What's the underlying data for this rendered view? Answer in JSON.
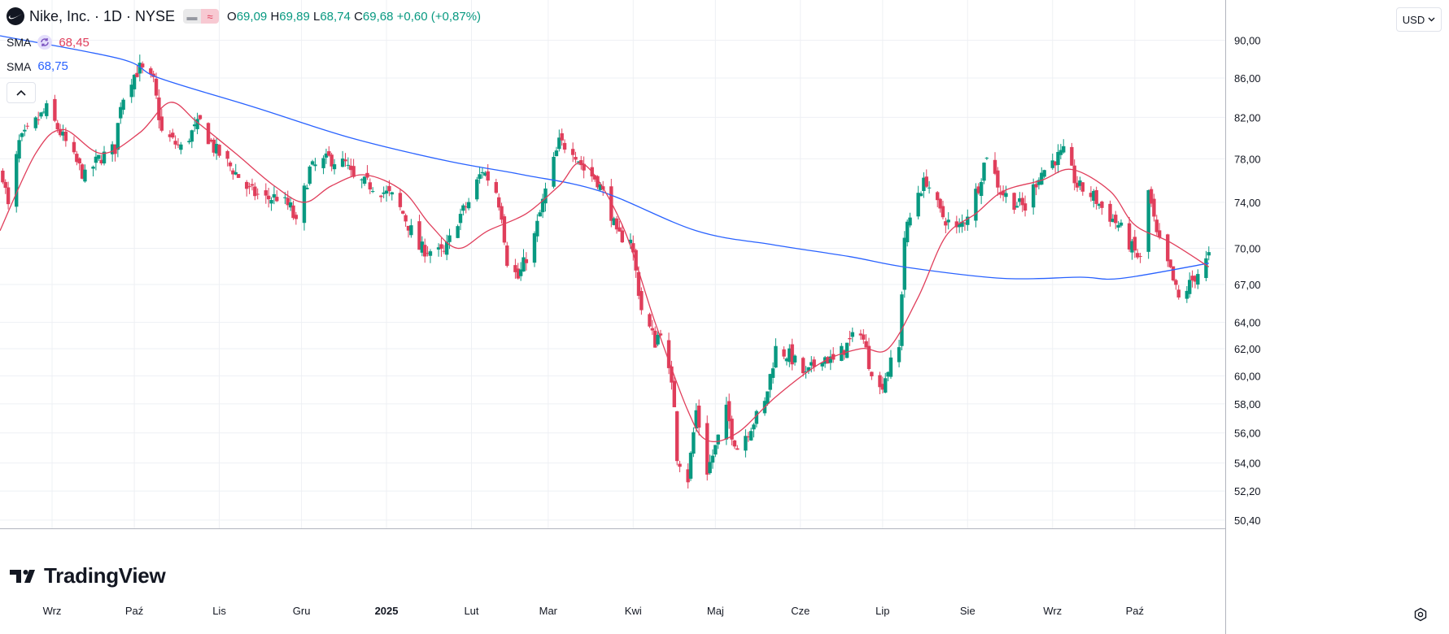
{
  "header": {
    "symbol_title": "Nike, Inc. · 1D · NYSE",
    "ohlc": {
      "o_label": "O",
      "o": "69,09",
      "h_label": "H",
      "h": "69,89",
      "l_label": "L",
      "l": "68,74",
      "c_label": "C",
      "c": "69,68",
      "change": "+0,60 (+0,87%)"
    }
  },
  "indicators": [
    {
      "name": "SMA",
      "value": "68,45",
      "color": "#e03e5b"
    },
    {
      "name": "SMA",
      "value": "68,75",
      "color": "#2962ff"
    }
  ],
  "currency": "USD",
  "brand": "TradingView",
  "icons": [
    "nike-swoosh-icon",
    "sync-icon",
    "chevron-up-icon",
    "chevron-down-icon",
    "settings-icon",
    "tradingview-logo-icon"
  ],
  "colors": {
    "up": "#089981",
    "down": "#e03e5b",
    "sma_short": "#e03e5b",
    "sma_long": "#2962ff",
    "grid": "#eef0f4"
  },
  "chart_data": {
    "type": "candlestick",
    "title": "Nike, Inc. · 1D · NYSE",
    "x_ticks": [
      {
        "label": "Wrz",
        "date": "2024-09-01"
      },
      {
        "label": "Paź",
        "date": "2024-10-01"
      },
      {
        "label": "Lis",
        "date": "2024-11-01"
      },
      {
        "label": "Gru",
        "date": "2024-12-01"
      },
      {
        "label": "2025",
        "date": "2025-01-01"
      },
      {
        "label": "Lut",
        "date": "2025-02-01"
      },
      {
        "label": "Mar",
        "date": "2025-03-01"
      },
      {
        "label": "Kwi",
        "date": "2025-04-01"
      },
      {
        "label": "Maj",
        "date": "2025-05-01"
      },
      {
        "label": "Cze",
        "date": "2025-06-01"
      },
      {
        "label": "Lip",
        "date": "2025-07-01"
      },
      {
        "label": "Sie",
        "date": "2025-08-01"
      },
      {
        "label": "Wrz",
        "date": "2025-09-01"
      },
      {
        "label": "Paź",
        "date": "2025-10-01"
      }
    ],
    "y_ticks": [
      "90,00",
      "86,00",
      "82,00",
      "78,00",
      "74,00",
      "70,00",
      "67,00",
      "64,00",
      "62,00",
      "60,00",
      "58,00",
      "56,00",
      "54,00",
      "52,20",
      "50,40"
    ],
    "y_scale": "log",
    "ylim": [
      49.9,
      94.5
    ],
    "xlim": [
      "2024-08-13",
      "2025-11-03"
    ],
    "grid": true,
    "last_close": 69.68,
    "price_path": [
      {
        "date": "2024-08-14",
        "close": 76.5
      },
      {
        "date": "2024-08-16",
        "close": 73.5
      },
      {
        "date": "2024-08-20",
        "close": 79.5
      },
      {
        "date": "2024-08-26",
        "close": 81.5
      },
      {
        "date": "2024-08-30",
        "close": 82.8
      },
      {
        "date": "2024-09-04",
        "close": 80.5
      },
      {
        "date": "2024-09-09",
        "close": 78.0
      },
      {
        "date": "2024-09-13",
        "close": 76.3
      },
      {
        "date": "2024-09-18",
        "close": 78.0
      },
      {
        "date": "2024-09-24",
        "close": 79.0
      },
      {
        "date": "2024-09-26",
        "close": 83.5
      },
      {
        "date": "2024-09-30",
        "close": 86.0
      },
      {
        "date": "2024-10-03",
        "close": 87.0
      },
      {
        "date": "2024-10-08",
        "close": 85.5
      },
      {
        "date": "2024-10-11",
        "close": 80.5
      },
      {
        "date": "2024-10-18",
        "close": 79.0
      },
      {
        "date": "2024-10-22",
        "close": 80.5
      },
      {
        "date": "2024-10-25",
        "close": 81.5
      },
      {
        "date": "2024-10-30",
        "close": 79.0
      },
      {
        "date": "2024-11-06",
        "close": 77.0
      },
      {
        "date": "2024-11-12",
        "close": 75.0
      },
      {
        "date": "2024-11-18",
        "close": 74.3
      },
      {
        "date": "2024-11-22",
        "close": 74.5
      },
      {
        "date": "2024-11-27",
        "close": 73.5
      },
      {
        "date": "2024-11-29",
        "close": 72.0
      },
      {
        "date": "2024-12-04",
        "close": 77.0
      },
      {
        "date": "2024-12-11",
        "close": 78.0
      },
      {
        "date": "2024-12-17",
        "close": 77.5
      },
      {
        "date": "2024-12-20",
        "close": 76.0
      },
      {
        "date": "2024-12-27",
        "close": 75.5
      },
      {
        "date": "2025-01-03",
        "close": 74.5
      },
      {
        "date": "2025-01-07",
        "close": 73.0
      },
      {
        "date": "2025-01-13",
        "close": 70.0
      },
      {
        "date": "2025-01-17",
        "close": 69.8
      },
      {
        "date": "2025-01-22",
        "close": 69.5
      },
      {
        "date": "2025-01-27",
        "close": 72.5
      },
      {
        "date": "2025-01-31",
        "close": 74.0
      },
      {
        "date": "2025-02-05",
        "close": 77.0
      },
      {
        "date": "2025-02-10",
        "close": 75.0
      },
      {
        "date": "2025-02-12",
        "close": 73.0
      },
      {
        "date": "2025-02-14",
        "close": 69.0
      },
      {
        "date": "2025-02-18",
        "close": 67.5
      },
      {
        "date": "2025-02-24",
        "close": 71.0
      },
      {
        "date": "2025-02-28",
        "close": 75.0
      },
      {
        "date": "2025-03-05",
        "close": 79.5
      },
      {
        "date": "2025-03-10",
        "close": 79.0
      },
      {
        "date": "2025-03-14",
        "close": 77.0
      },
      {
        "date": "2025-03-19",
        "close": 76.0
      },
      {
        "date": "2025-03-24",
        "close": 73.0
      },
      {
        "date": "2025-03-26",
        "close": 71.0
      },
      {
        "date": "2025-03-31",
        "close": 71.0
      },
      {
        "date": "2025-04-02",
        "close": 68.0
      },
      {
        "date": "2025-04-04",
        "close": 65.0
      },
      {
        "date": "2025-04-07",
        "close": 63.5
      },
      {
        "date": "2025-04-09",
        "close": 62.5
      },
      {
        "date": "2025-04-11",
        "close": 63.5
      },
      {
        "date": "2025-04-16",
        "close": 58.0
      },
      {
        "date": "2025-04-17",
        "close": 54.5
      },
      {
        "date": "2025-04-21",
        "close": 53.0
      },
      {
        "date": "2025-04-24",
        "close": 57.5
      },
      {
        "date": "2025-04-28",
        "close": 53.5
      },
      {
        "date": "2025-05-01",
        "close": 55.0
      },
      {
        "date": "2025-05-05",
        "close": 57.5
      },
      {
        "date": "2025-05-07",
        "close": 56.0
      },
      {
        "date": "2025-05-09",
        "close": 55.0
      },
      {
        "date": "2025-05-14",
        "close": 56.5
      },
      {
        "date": "2025-05-19",
        "close": 58.0
      },
      {
        "date": "2025-05-23",
        "close": 62.0
      },
      {
        "date": "2025-05-28",
        "close": 61.5
      },
      {
        "date": "2025-06-03",
        "close": 60.0
      },
      {
        "date": "2025-06-09",
        "close": 61.5
      },
      {
        "date": "2025-06-13",
        "close": 61.0
      },
      {
        "date": "2025-06-17",
        "close": 62.0
      },
      {
        "date": "2025-06-23",
        "close": 63.5
      },
      {
        "date": "2025-06-26",
        "close": 61.0
      },
      {
        "date": "2025-06-30",
        "close": 59.0
      },
      {
        "date": "2025-07-03",
        "close": 60.5
      },
      {
        "date": "2025-07-07",
        "close": 62.0
      },
      {
        "date": "2025-07-09",
        "close": 71.0
      },
      {
        "date": "2025-07-14",
        "close": 75.0
      },
      {
        "date": "2025-07-17",
        "close": 76.0
      },
      {
        "date": "2025-07-22",
        "close": 73.0
      },
      {
        "date": "2025-07-28",
        "close": 71.5
      },
      {
        "date": "2025-07-31",
        "close": 72.5
      },
      {
        "date": "2025-08-05",
        "close": 75.5
      },
      {
        "date": "2025-08-08",
        "close": 78.5
      },
      {
        "date": "2025-08-13",
        "close": 75.0
      },
      {
        "date": "2025-08-18",
        "close": 74.0
      },
      {
        "date": "2025-08-22",
        "close": 73.5
      },
      {
        "date": "2025-08-27",
        "close": 76.5
      },
      {
        "date": "2025-09-02",
        "close": 78.0
      },
      {
        "date": "2025-09-05",
        "close": 78.5
      },
      {
        "date": "2025-09-10",
        "close": 75.5
      },
      {
        "date": "2025-09-16",
        "close": 74.5
      },
      {
        "date": "2025-09-19",
        "close": 73.5
      },
      {
        "date": "2025-09-25",
        "close": 72.0
      },
      {
        "date": "2025-09-30",
        "close": 70.0
      },
      {
        "date": "2025-10-03",
        "close": 69.0
      },
      {
        "date": "2025-10-06",
        "close": 75.0
      },
      {
        "date": "2025-10-09",
        "close": 71.0
      },
      {
        "date": "2025-10-14",
        "close": 68.0
      },
      {
        "date": "2025-10-17",
        "close": 65.8
      },
      {
        "date": "2025-10-21",
        "close": 67.0
      },
      {
        "date": "2025-10-24",
        "close": 68.0
      },
      {
        "date": "2025-10-27",
        "close": 68.9
      },
      {
        "date": "2025-10-28",
        "close": 69.68
      }
    ],
    "sma_short_path": [
      {
        "date": "2024-08-13",
        "value": 71.5
      },
      {
        "date": "2024-08-26",
        "value": 78.5
      },
      {
        "date": "2024-09-05",
        "value": 80.8
      },
      {
        "date": "2024-09-19",
        "value": 78.5
      },
      {
        "date": "2024-10-03",
        "value": 80.5
      },
      {
        "date": "2024-10-14",
        "value": 83.5
      },
      {
        "date": "2024-10-24",
        "value": 81.5
      },
      {
        "date": "2024-11-07",
        "value": 78.5
      },
      {
        "date": "2024-11-21",
        "value": 75.5
      },
      {
        "date": "2024-12-02",
        "value": 74.0
      },
      {
        "date": "2024-12-12",
        "value": 75.5
      },
      {
        "date": "2024-12-24",
        "value": 76.5
      },
      {
        "date": "2025-01-07",
        "value": 75.0
      },
      {
        "date": "2025-01-17",
        "value": 72.0
      },
      {
        "date": "2025-01-27",
        "value": 70.0
      },
      {
        "date": "2025-02-07",
        "value": 71.5
      },
      {
        "date": "2025-02-21",
        "value": 73.0
      },
      {
        "date": "2025-03-05",
        "value": 75.5
      },
      {
        "date": "2025-03-14",
        "value": 77.5
      },
      {
        "date": "2025-03-28",
        "value": 72.0
      },
      {
        "date": "2025-04-09",
        "value": 64.0
      },
      {
        "date": "2025-04-21",
        "value": 57.5
      },
      {
        "date": "2025-04-28",
        "value": 55.5
      },
      {
        "date": "2025-05-09",
        "value": 56.0
      },
      {
        "date": "2025-05-23",
        "value": 58.5
      },
      {
        "date": "2025-06-09",
        "value": 61.0
      },
      {
        "date": "2025-06-23",
        "value": 62.0
      },
      {
        "date": "2025-07-03",
        "value": 62.0
      },
      {
        "date": "2025-07-14",
        "value": 66.0
      },
      {
        "date": "2025-07-24",
        "value": 71.0
      },
      {
        "date": "2025-08-04",
        "value": 73.0
      },
      {
        "date": "2025-08-14",
        "value": 75.0
      },
      {
        "date": "2025-08-28",
        "value": 76.0
      },
      {
        "date": "2025-09-08",
        "value": 77.0
      },
      {
        "date": "2025-09-22",
        "value": 75.0
      },
      {
        "date": "2025-10-01",
        "value": 72.0
      },
      {
        "date": "2025-10-14",
        "value": 70.5
      },
      {
        "date": "2025-10-28",
        "value": 68.45
      }
    ],
    "sma_long_path": [
      {
        "date": "2024-08-13",
        "value": 90.5
      },
      {
        "date": "2024-09-26",
        "value": 88.0
      },
      {
        "date": "2024-10-10",
        "value": 86.0
      },
      {
        "date": "2024-11-14",
        "value": 83.0
      },
      {
        "date": "2024-12-19",
        "value": 80.0
      },
      {
        "date": "2025-01-23",
        "value": 77.8
      },
      {
        "date": "2025-02-20",
        "value": 76.5
      },
      {
        "date": "2025-03-20",
        "value": 75.0
      },
      {
        "date": "2025-04-24",
        "value": 71.5
      },
      {
        "date": "2025-05-22",
        "value": 70.3
      },
      {
        "date": "2025-06-19",
        "value": 69.3
      },
      {
        "date": "2025-07-10",
        "value": 68.4
      },
      {
        "date": "2025-08-14",
        "value": 67.5
      },
      {
        "date": "2025-09-11",
        "value": 67.6
      },
      {
        "date": "2025-09-26",
        "value": 67.5
      },
      {
        "date": "2025-10-28",
        "value": 68.75
      }
    ]
  }
}
